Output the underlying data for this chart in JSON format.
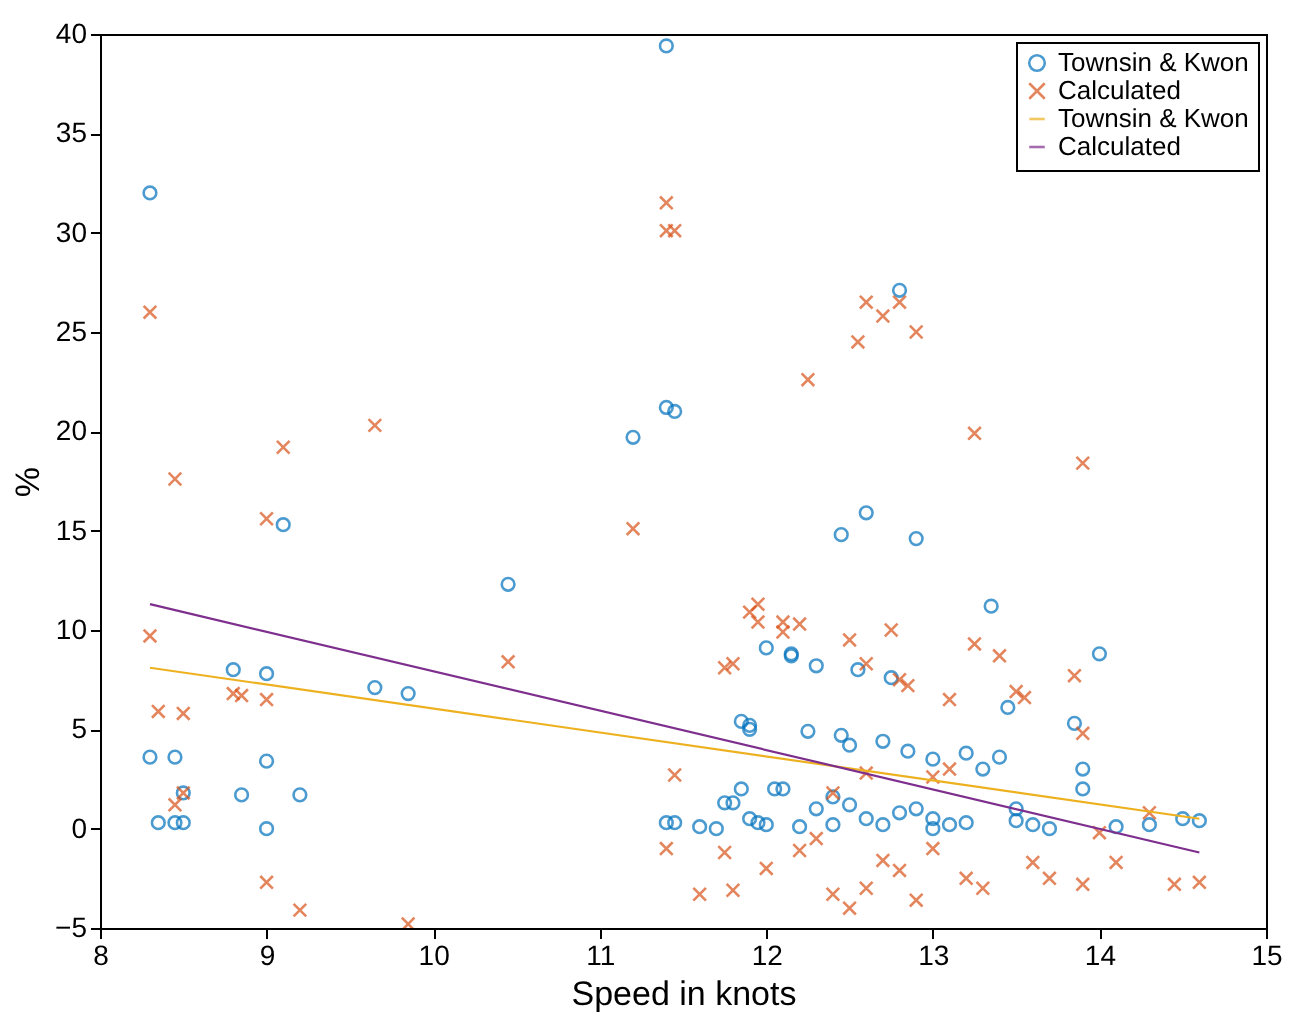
{
  "chart_data": {
    "type": "scatter",
    "xlabel": "Speed in knots",
    "ylabel": "%",
    "xlim": [
      8,
      15
    ],
    "xticks": [
      8,
      9,
      10,
      11,
      12,
      13,
      14,
      15
    ],
    "ylim": [
      -5,
      40
    ],
    "yticks": [
      -5,
      0,
      5,
      10,
      15,
      20,
      25,
      30,
      35,
      40
    ],
    "grid": false,
    "legend": "top right",
    "series": [
      {
        "name": "Townsin & Kwon",
        "marker": "circle",
        "color": "#0072bd",
        "x": [
          8.3,
          8.3,
          8.35,
          8.45,
          8.45,
          8.5,
          8.5,
          8.8,
          8.85,
          9,
          9,
          9,
          9.1,
          9.2,
          9.65,
          9.85,
          10.45,
          11.2,
          11.4,
          11.4,
          11.45,
          11.4,
          11.45,
          11.6,
          11.75,
          11.8,
          11.85,
          11.85,
          11.9,
          11.9,
          11.9,
          11.95,
          12,
          12.05,
          12.1,
          12.15,
          12.15,
          12.2,
          12.25,
          12.3,
          12.4,
          12.45,
          12.45,
          12.5,
          12.55,
          12.6,
          12.5,
          12.6,
          12.7,
          12.75,
          12.8,
          12.9,
          12.85,
          12.9,
          13,
          13,
          13.1,
          13.2,
          13.3,
          13.35,
          13.4,
          13.45,
          13.5,
          13.6,
          13.85,
          13.9,
          14,
          13.9,
          14.1,
          14.3,
          14.5,
          14.6,
          13,
          12.7,
          12.8,
          13.2,
          13.5,
          12.3,
          12.4,
          12,
          11.7,
          13.7
        ],
        "values": [
          32,
          3.6,
          0.3,
          3.6,
          0.3,
          0.3,
          1.8,
          8,
          1.7,
          7.8,
          3.4,
          0,
          15.3,
          1.7,
          7.1,
          6.8,
          12.3,
          19.7,
          39.4,
          21.2,
          21,
          0.3,
          0.3,
          0.1,
          1.3,
          1.3,
          2,
          5.4,
          5,
          5.2,
          0.5,
          0.3,
          9.1,
          2,
          2,
          8.8,
          8.7,
          0.1,
          4.9,
          8.2,
          0.2,
          14.8,
          4.7,
          4.2,
          8,
          15.9,
          1.2,
          0.5,
          4.4,
          7.6,
          27.1,
          14.6,
          3.9,
          1,
          0.5,
          3.5,
          0.2,
          3.8,
          3,
          11.2,
          3.6,
          6.1,
          1,
          0.2,
          5.3,
          3,
          8.8,
          2,
          0.1,
          0.2,
          0.5,
          0.4,
          0,
          0.2,
          0.8,
          0.3,
          0.4,
          1,
          1.6,
          0.2,
          0,
          0
        ]
      },
      {
        "name": "Calculated",
        "marker": "cross",
        "color": "#d95319",
        "x": [
          8.3,
          8.3,
          8.35,
          8.45,
          8.5,
          8.45,
          8.5,
          8.8,
          8.85,
          9,
          9,
          9,
          9.1,
          9.2,
          9.65,
          9.85,
          10.45,
          11.2,
          11.4,
          11.4,
          11.45,
          11.45,
          11.4,
          11.6,
          11.75,
          11.8,
          11.75,
          11.8,
          11.9,
          11.95,
          11.95,
          12.1,
          12.1,
          12.2,
          12,
          12.2,
          12.25,
          12.4,
          12.5,
          12.55,
          12.6,
          12.7,
          12.8,
          12.9,
          12.5,
          12.6,
          12.75,
          12.8,
          12.85,
          13,
          13.1,
          13.25,
          13.25,
          13.4,
          13.5,
          13.55,
          13.85,
          13.9,
          13.9,
          14,
          14.1,
          13.9,
          14.45,
          14.6,
          14.3,
          13.3,
          13.2,
          12.9,
          12.7,
          12.6,
          12.3,
          12.4,
          12.6,
          13,
          13.6,
          13.7,
          12.8,
          13.1
        ],
        "values": [
          26,
          9.7,
          5.9,
          17.6,
          5.8,
          1.2,
          1.8,
          6.8,
          6.7,
          6.5,
          15.6,
          -2.7,
          19.2,
          -4.1,
          20.3,
          -4.8,
          8.4,
          15.1,
          31.5,
          30.1,
          30.1,
          2.7,
          -1,
          -3.3,
          -1.2,
          -3.1,
          8.1,
          8.3,
          10.9,
          11.3,
          10.4,
          10.4,
          9.9,
          10.3,
          -2,
          -1.1,
          22.6,
          -3.3,
          -4,
          24.5,
          26.5,
          25.8,
          26.5,
          25,
          9.5,
          8.3,
          10,
          7.5,
          7.2,
          2.6,
          6.5,
          19.9,
          9.3,
          8.7,
          6.9,
          6.6,
          7.7,
          18.4,
          4.8,
          -0.2,
          -1.7,
          -2.8,
          -2.8,
          -2.7,
          0.8,
          -3,
          -2.5,
          -3.6,
          -1.6,
          -3,
          -0.5,
          1.8,
          2.8,
          -1,
          -1.7,
          -2.5,
          -2.1,
          3
        ]
      },
      {
        "name": "Townsin & Kwon",
        "type": "line",
        "color": "#edb120",
        "x": [
          8.3,
          14.6
        ],
        "values": [
          8.1,
          0.5
        ]
      },
      {
        "name": "Calculated",
        "type": "line",
        "color": "#7e2f8e",
        "x": [
          8.3,
          14.6
        ],
        "values": [
          11.3,
          -1.2
        ]
      }
    ]
  }
}
